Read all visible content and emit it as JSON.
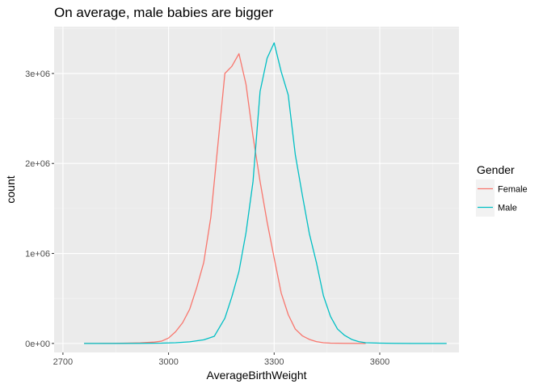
{
  "chart_data": {
    "type": "line",
    "title": "On average, male babies are bigger",
    "xlabel": "AverageBirthWeight",
    "ylabel": "count",
    "xlim": [
      2675,
      3825
    ],
    "ylim": [
      -100000,
      3520000
    ],
    "x_ticks": [
      2700,
      3000,
      3300,
      3600
    ],
    "x_tick_labels": [
      "2700",
      "3000",
      "3300",
      "3600"
    ],
    "y_ticks": [
      0,
      1000000,
      2000000,
      3000000
    ],
    "y_tick_labels": [
      "0e+00",
      "1e+06",
      "2e+06",
      "3e+06"
    ],
    "grid": true,
    "background": "#ebebeb",
    "legend": {
      "title": "Gender",
      "position": "right"
    },
    "series": [
      {
        "name": "Female",
        "color": "#f8766d",
        "points": [
          [
            2760,
            0
          ],
          [
            2800,
            0
          ],
          [
            2840,
            1000
          ],
          [
            2880,
            3000
          ],
          [
            2920,
            7000
          ],
          [
            2960,
            15000
          ],
          [
            2980,
            25000
          ],
          [
            3000,
            60000
          ],
          [
            3020,
            130000
          ],
          [
            3040,
            230000
          ],
          [
            3060,
            380000
          ],
          [
            3080,
            620000
          ],
          [
            3100,
            900000
          ],
          [
            3120,
            1400000
          ],
          [
            3140,
            2200000
          ],
          [
            3160,
            3000000
          ],
          [
            3180,
            3080000
          ],
          [
            3200,
            3220000
          ],
          [
            3220,
            2880000
          ],
          [
            3240,
            2300000
          ],
          [
            3260,
            1800000
          ],
          [
            3280,
            1350000
          ],
          [
            3300,
            950000
          ],
          [
            3320,
            560000
          ],
          [
            3340,
            320000
          ],
          [
            3360,
            160000
          ],
          [
            3380,
            85000
          ],
          [
            3400,
            45000
          ],
          [
            3420,
            20000
          ],
          [
            3440,
            8000
          ],
          [
            3460,
            3000
          ],
          [
            3500,
            1000
          ],
          [
            3560,
            0
          ]
        ]
      },
      {
        "name": "Male",
        "color": "#00bfc4",
        "points": [
          [
            2760,
            0
          ],
          [
            2840,
            0
          ],
          [
            2920,
            1000
          ],
          [
            2980,
            3000
          ],
          [
            3020,
            8000
          ],
          [
            3060,
            18000
          ],
          [
            3100,
            40000
          ],
          [
            3130,
            80000
          ],
          [
            3160,
            280000
          ],
          [
            3180,
            520000
          ],
          [
            3200,
            800000
          ],
          [
            3220,
            1230000
          ],
          [
            3240,
            1800000
          ],
          [
            3260,
            2800000
          ],
          [
            3280,
            3170000
          ],
          [
            3300,
            3340000
          ],
          [
            3320,
            3020000
          ],
          [
            3340,
            2760000
          ],
          [
            3360,
            2100000
          ],
          [
            3380,
            1650000
          ],
          [
            3400,
            1220000
          ],
          [
            3420,
            900000
          ],
          [
            3440,
            530000
          ],
          [
            3460,
            300000
          ],
          [
            3480,
            160000
          ],
          [
            3500,
            90000
          ],
          [
            3520,
            45000
          ],
          [
            3540,
            20000
          ],
          [
            3560,
            8000
          ],
          [
            3600,
            3000
          ],
          [
            3640,
            1000
          ],
          [
            3700,
            0
          ],
          [
            3790,
            0
          ]
        ]
      }
    ]
  }
}
